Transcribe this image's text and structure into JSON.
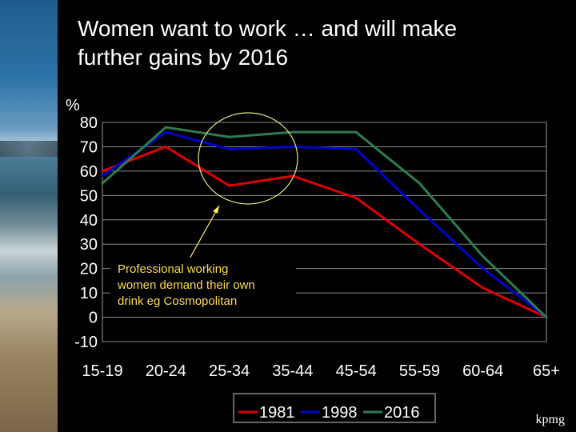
{
  "slide": {
    "title_line1": "Women want to work … and will make",
    "title_line2": "further gains by 2016",
    "logo_text": "kpmg"
  },
  "chart_data": {
    "type": "line",
    "ylabel": "%",
    "ylim": [
      -10,
      80
    ],
    "yticks": [
      80,
      70,
      60,
      50,
      40,
      30,
      20,
      10,
      0,
      -10
    ],
    "categories": [
      "15-19",
      "20-24",
      "25-34",
      "35-44",
      "45-54",
      "55-59",
      "60-64",
      "65+"
    ],
    "series": [
      {
        "name": "1981",
        "color": "#dd0000",
        "values": [
          60,
          70,
          54,
          58,
          49,
          30,
          12,
          0
        ]
      },
      {
        "name": "1998",
        "color": "#0000cc",
        "values": [
          58,
          76,
          69,
          70,
          69,
          44,
          20,
          0
        ]
      },
      {
        "name": "2016",
        "color": "#2e7d4f",
        "values": [
          55,
          78,
          74,
          76,
          76,
          55,
          25,
          0
        ]
      }
    ],
    "annotation": {
      "lines": [
        "Professional working",
        "women demand their own",
        "drink eg Cosmopolitan"
      ],
      "color": "#ffdd55"
    },
    "legend_position": "bottom-center",
    "grid": true
  }
}
